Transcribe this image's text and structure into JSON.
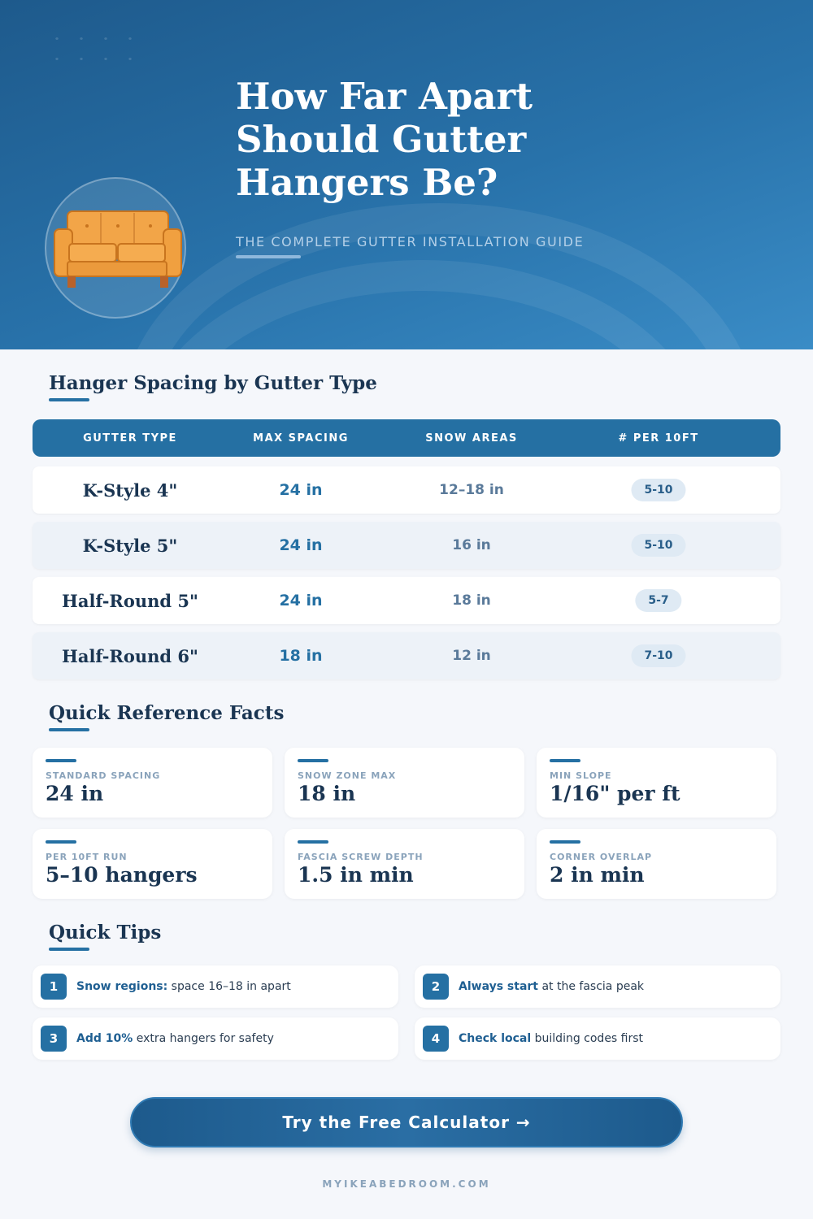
{
  "hero": {
    "title_lines": [
      "How Far Apart",
      "Should Gutter",
      "Hangers Be?"
    ],
    "subtitle": "THE COMPLETE GUTTER INSTALLATION GUIDE",
    "illustration": "orange-sofa-icon"
  },
  "spacing": {
    "heading": "Hanger Spacing by Gutter Type",
    "columns": [
      "GUTTER TYPE",
      "MAX SPACING",
      "SNOW AREAS",
      "# PER 10FT"
    ],
    "rows": [
      {
        "type": "K-Style 4\"",
        "max": "24 in",
        "snow": "12–18 in",
        "per10": "5-10"
      },
      {
        "type": "K-Style 5\"",
        "max": "24 in",
        "snow": "16 in",
        "per10": "5-10"
      },
      {
        "type": "Half-Round 5\"",
        "max": "24 in",
        "snow": "18 in",
        "per10": "5-7"
      },
      {
        "type": "Half-Round 6\"",
        "max": "18 in",
        "snow": "12 in",
        "per10": "7-10"
      }
    ]
  },
  "facts": {
    "heading": "Quick Reference Facts",
    "items": [
      {
        "label": "STANDARD SPACING",
        "value": "24 in"
      },
      {
        "label": "SNOW ZONE MAX",
        "value": "18 in"
      },
      {
        "label": "MIN SLOPE",
        "value": "1/16\" per ft"
      },
      {
        "label": "PER 10FT RUN",
        "value": "5–10 hangers"
      },
      {
        "label": "FASCIA SCREW DEPTH",
        "value": "1.5 in min"
      },
      {
        "label": "CORNER OVERLAP",
        "value": "2 in min"
      }
    ]
  },
  "tips": {
    "heading": "Quick Tips",
    "items": [
      {
        "num": "1",
        "bold": "Snow regions:",
        "text": " space 16–18 in apart"
      },
      {
        "num": "2",
        "bold": "Always start",
        "text": " at the fascia peak"
      },
      {
        "num": "3",
        "bold": "Add 10%",
        "text": " extra hangers for safety"
      },
      {
        "num": "4",
        "bold": "Check local",
        "text": " building codes first"
      }
    ]
  },
  "cta": {
    "label": "Try the Free Calculator →"
  },
  "footer": {
    "site": "MYIKEABEDROOM.COM"
  },
  "colors": {
    "primary": "#2570a3",
    "heading": "#1a3552",
    "accent_sofa": "#f0a040"
  }
}
